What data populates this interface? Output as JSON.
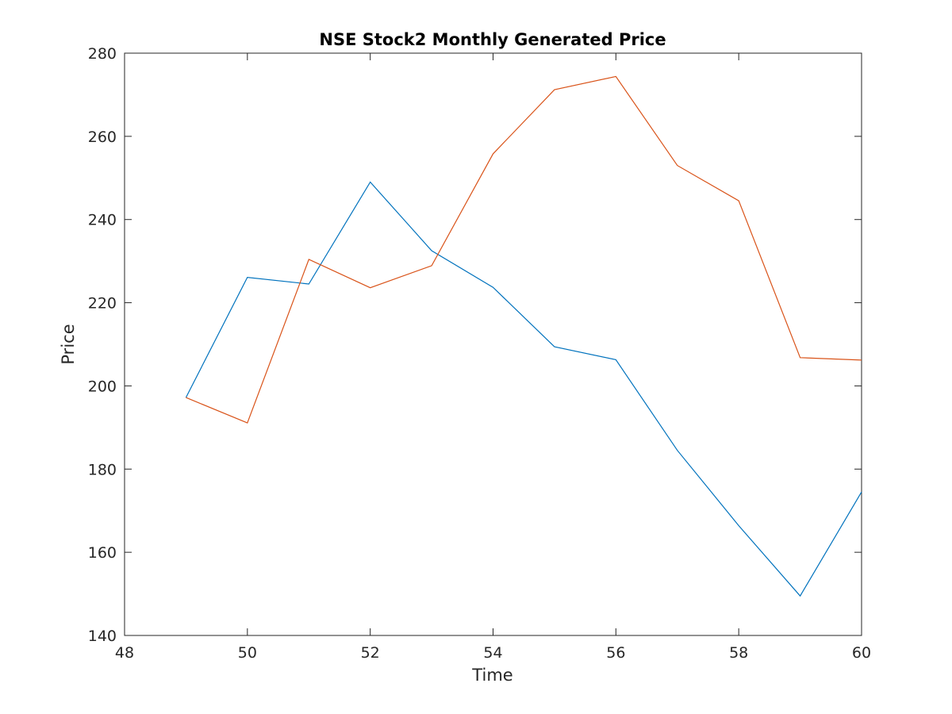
{
  "chart_data": {
    "type": "line",
    "title": "NSE Stock2 Monthly Generated Price",
    "xlabel": "Time",
    "ylabel": "Price",
    "xlim": [
      48,
      60
    ],
    "ylim": [
      140,
      280
    ],
    "xticks": [
      48,
      50,
      52,
      54,
      56,
      58,
      60
    ],
    "yticks": [
      140,
      160,
      180,
      200,
      220,
      240,
      260,
      280
    ],
    "grid": false,
    "x": [
      49,
      50,
      51,
      52,
      53,
      54,
      55,
      56,
      57,
      58,
      59,
      60
    ],
    "series": [
      {
        "color": "#0072BD",
        "values": [
          197.2,
          226.1,
          224.5,
          249.0,
          232.5,
          223.7,
          209.4,
          206.3,
          184.5,
          166.4,
          149.5,
          174.5
        ]
      },
      {
        "color": "#D95319",
        "values": [
          197.2,
          191.1,
          230.4,
          223.6,
          228.9,
          255.8,
          271.2,
          274.4,
          253.0,
          244.5,
          206.8,
          206.2
        ]
      }
    ]
  }
}
